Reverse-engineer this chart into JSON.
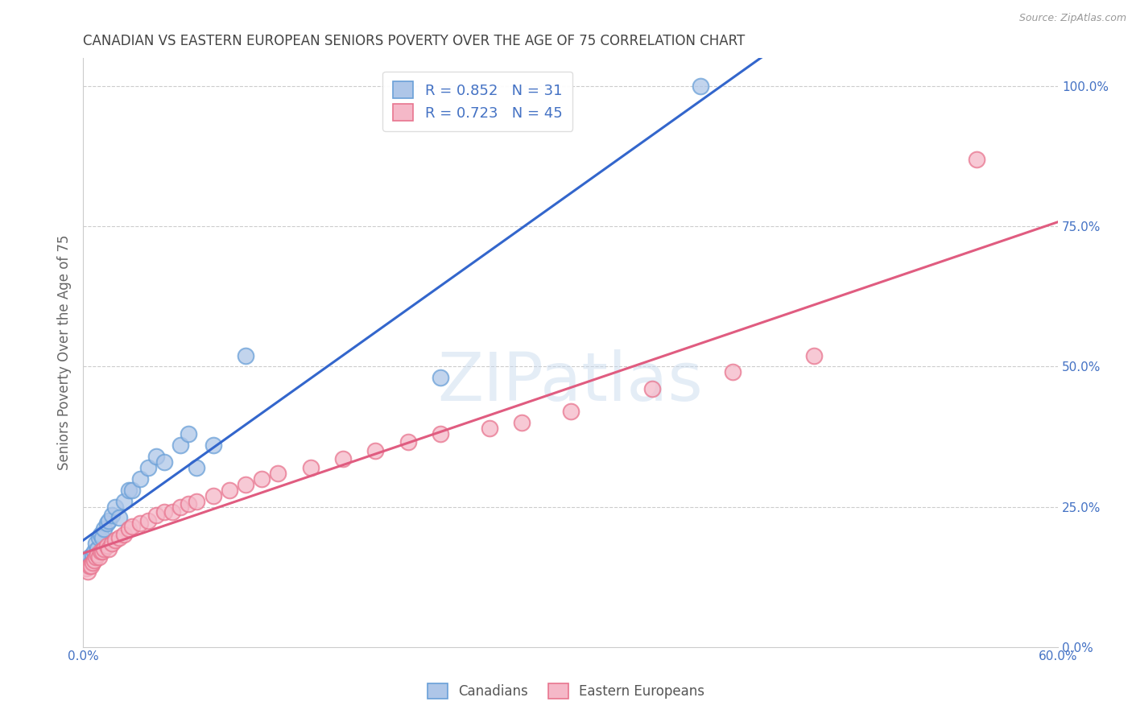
{
  "title": "CANADIAN VS EASTERN EUROPEAN SENIORS POVERTY OVER THE AGE OF 75 CORRELATION CHART",
  "source": "Source: ZipAtlas.com",
  "ylabel": "Seniors Poverty Over the Age of 75",
  "watermark": "ZIPatlas",
  "xlim": [
    0.0,
    0.6
  ],
  "ylim": [
    0.0,
    1.05
  ],
  "xticks": [
    0.0,
    0.1,
    0.2,
    0.3,
    0.4,
    0.5,
    0.6
  ],
  "xtick_labels": [
    "0.0%",
    "",
    "",
    "",
    "",
    "",
    "60.0%"
  ],
  "yticks": [
    0.0,
    0.25,
    0.5,
    0.75,
    1.0
  ],
  "ytick_labels": [
    "0.0%",
    "25.0%",
    "50.0%",
    "75.0%",
    "100.0%"
  ],
  "canadian_color": "#aec6e8",
  "canadian_edge_color": "#6aa0d8",
  "eastern_color": "#f5b8c8",
  "eastern_edge_color": "#e8758f",
  "canadian_line_color": "#3366cc",
  "eastern_line_color": "#e05c80",
  "R_canadian": 0.852,
  "N_canadian": 31,
  "R_eastern": 0.723,
  "N_eastern": 45,
  "background_color": "#ffffff",
  "grid_color": "#cccccc",
  "title_color": "#444444",
  "axis_label_color": "#666666",
  "tick_color": "#4472c4",
  "canadians_x": [
    0.002,
    0.003,
    0.004,
    0.005,
    0.006,
    0.007,
    0.008,
    0.009,
    0.01,
    0.011,
    0.012,
    0.013,
    0.015,
    0.016,
    0.018,
    0.02,
    0.022,
    0.025,
    0.028,
    0.03,
    0.035,
    0.04,
    0.045,
    0.05,
    0.06,
    0.065,
    0.07,
    0.08,
    0.1,
    0.22,
    0.38
  ],
  "canadians_y": [
    0.155,
    0.145,
    0.16,
    0.15,
    0.165,
    0.17,
    0.185,
    0.175,
    0.195,
    0.2,
    0.195,
    0.21,
    0.22,
    0.225,
    0.235,
    0.25,
    0.23,
    0.26,
    0.28,
    0.28,
    0.3,
    0.32,
    0.34,
    0.33,
    0.36,
    0.38,
    0.32,
    0.36,
    0.52,
    0.48,
    1.0
  ],
  "eastern_x": [
    0.002,
    0.003,
    0.004,
    0.005,
    0.006,
    0.007,
    0.008,
    0.009,
    0.01,
    0.011,
    0.012,
    0.013,
    0.015,
    0.016,
    0.018,
    0.02,
    0.022,
    0.025,
    0.028,
    0.03,
    0.035,
    0.04,
    0.045,
    0.05,
    0.055,
    0.06,
    0.065,
    0.07,
    0.08,
    0.09,
    0.1,
    0.11,
    0.12,
    0.14,
    0.16,
    0.18,
    0.2,
    0.22,
    0.25,
    0.27,
    0.3,
    0.35,
    0.4,
    0.45,
    0.55
  ],
  "eastern_y": [
    0.14,
    0.135,
    0.145,
    0.145,
    0.15,
    0.155,
    0.16,
    0.165,
    0.16,
    0.17,
    0.17,
    0.175,
    0.18,
    0.175,
    0.185,
    0.19,
    0.195,
    0.2,
    0.21,
    0.215,
    0.22,
    0.225,
    0.235,
    0.24,
    0.24,
    0.25,
    0.255,
    0.26,
    0.27,
    0.28,
    0.29,
    0.3,
    0.31,
    0.32,
    0.335,
    0.35,
    0.365,
    0.38,
    0.39,
    0.4,
    0.42,
    0.46,
    0.49,
    0.52,
    0.87
  ],
  "legend_label1": "R = 0.852   N = 31",
  "legend_label2": "R = 0.723   N = 45",
  "bottom_legend_labels": [
    "Canadians",
    "Eastern Europeans"
  ]
}
